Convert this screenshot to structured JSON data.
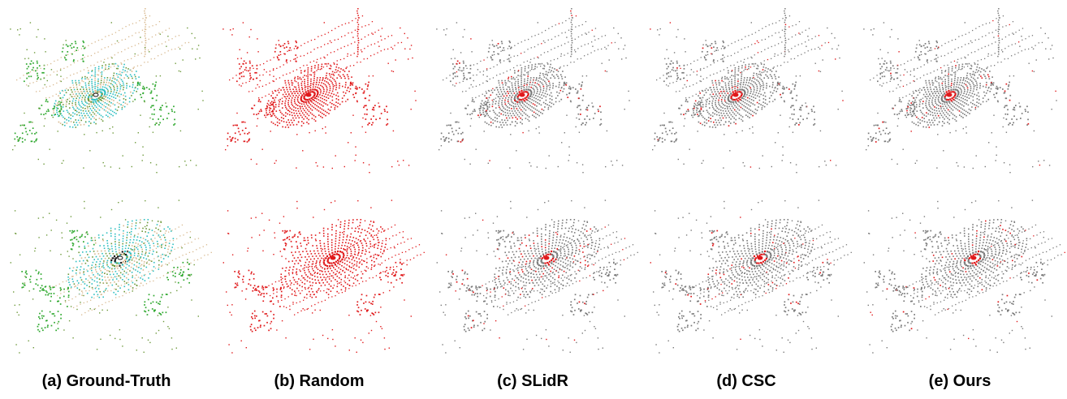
{
  "figure": {
    "captions": [
      "(a) Ground-Truth",
      "(b) Random",
      "(c) SLidR",
      "(d) CSC",
      "(e) Ours"
    ]
  },
  "colors": {
    "background": "#ffffff",
    "error": "#e0191b",
    "correct": "#7a7a7a",
    "gt_vegetation": "#2ea82e",
    "gt_terrain": "#d8b98f",
    "gt_road": "#2fbfc0",
    "gt_sidewalk": "#6e9a3c",
    "gt_vehicle": "#1a1a1a"
  }
}
